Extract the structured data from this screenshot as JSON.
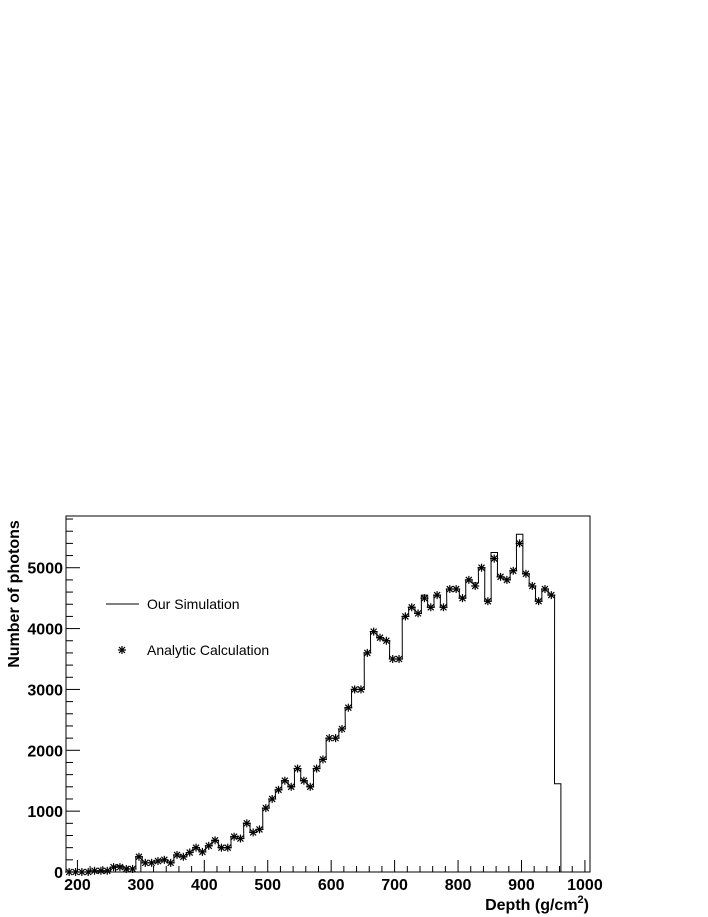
{
  "chart_data": {
    "type": "line",
    "title": "",
    "xlabel": "Depth (g/cm",
    "xlabel_sup": "2",
    "xlabel_end": ")",
    "ylabel": "Number of photons",
    "xlim": [
      182,
      1008
    ],
    "ylim": [
      0,
      5850
    ],
    "x_ticks": [
      200,
      300,
      400,
      500,
      600,
      700,
      800,
      900,
      1000
    ],
    "x_tick_labels": [
      "200",
      "300",
      "400",
      "500",
      "600",
      "700",
      "800",
      "900",
      "1000"
    ],
    "y_ticks": [
      0,
      1000,
      2000,
      3000,
      4000,
      5000
    ],
    "y_tick_labels": [
      "0",
      "1000",
      "2000",
      "3000",
      "4000",
      "5000"
    ],
    "grid": false,
    "legend_position": "upper-left",
    "bin_width": 10.2,
    "series": [
      {
        "name": "Our Simulation",
        "style": "step",
        "x": [
          182,
          192,
          202,
          212,
          222,
          232,
          242,
          252,
          262,
          272,
          282,
          292,
          302,
          312,
          322,
          332,
          342,
          352,
          362,
          372,
          382,
          392,
          402,
          412,
          422,
          432,
          442,
          452,
          462,
          472,
          482,
          492,
          502,
          512,
          522,
          532,
          542,
          552,
          562,
          572,
          582,
          592,
          602,
          612,
          622,
          632,
          642,
          652,
          662,
          672,
          682,
          692,
          702,
          712,
          722,
          732,
          742,
          752,
          762,
          772,
          782,
          792,
          802,
          812,
          822,
          832,
          842,
          852,
          862,
          872,
          882,
          892,
          902,
          912,
          922,
          932,
          942,
          952
        ],
        "values": [
          0,
          0,
          0,
          0,
          0,
          0,
          0,
          80,
          100,
          50,
          50,
          250,
          150,
          150,
          180,
          200,
          150,
          280,
          250,
          320,
          400,
          330,
          430,
          520,
          400,
          400,
          580,
          550,
          800,
          650,
          700,
          1050,
          1200,
          1350,
          1500,
          1400,
          1700,
          1500,
          1400,
          1700,
          1850,
          2200,
          2200,
          2350,
          2700,
          3000,
          3000,
          3600,
          3950,
          3850,
          3800,
          3500,
          3500,
          4200,
          4350,
          4250,
          4550,
          4350,
          4550,
          4350,
          4650,
          4650,
          4500,
          4800,
          4750,
          5000,
          4450,
          5250,
          4850,
          4800,
          4950,
          5550,
          4900,
          4700,
          4450,
          4650,
          4550,
          1450
        ]
      },
      {
        "name": "Analytic Calculation",
        "style": "marker",
        "x": [
          187,
          197,
          207,
          217,
          227,
          237,
          247,
          257,
          267,
          277,
          287,
          297,
          307,
          317,
          327,
          337,
          347,
          357,
          367,
          377,
          387,
          397,
          407,
          417,
          427,
          437,
          447,
          457,
          467,
          477,
          487,
          497,
          507,
          517,
          527,
          537,
          547,
          557,
          567,
          577,
          587,
          597,
          607,
          617,
          627,
          637,
          647,
          657,
          667,
          677,
          687,
          697,
          707,
          717,
          727,
          737,
          747,
          757,
          767,
          777,
          787,
          797,
          807,
          817,
          827,
          837,
          847,
          857,
          867,
          877,
          887,
          897,
          907,
          917,
          927,
          937,
          947
        ],
        "values": [
          0,
          0,
          0,
          0,
          20,
          20,
          20,
          80,
          80,
          50,
          50,
          250,
          150,
          150,
          180,
          200,
          150,
          280,
          250,
          320,
          400,
          330,
          430,
          520,
          400,
          400,
          580,
          550,
          800,
          650,
          700,
          1050,
          1200,
          1350,
          1500,
          1400,
          1700,
          1500,
          1400,
          1700,
          1850,
          2200,
          2200,
          2350,
          2700,
          3000,
          3000,
          3600,
          3950,
          3850,
          3800,
          3500,
          3500,
          4200,
          4350,
          4250,
          4500,
          4350,
          4550,
          4350,
          4650,
          4650,
          4500,
          4800,
          4700,
          5000,
          4450,
          5150,
          4850,
          4800,
          4950,
          5400,
          4900,
          4700,
          4450,
          4650,
          4550
        ]
      }
    ]
  }
}
